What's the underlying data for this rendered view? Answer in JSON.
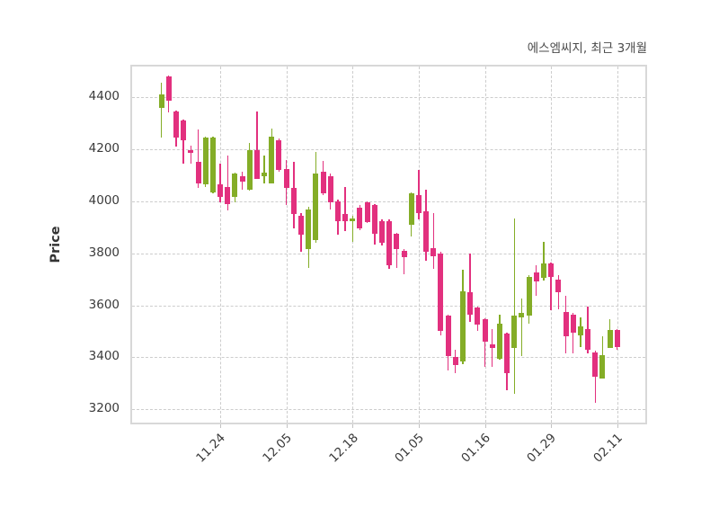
{
  "title": "에스엠씨지, 최근 3개월",
  "ylabel": "Price",
  "colors": {
    "up": "#84ad27",
    "down": "#e2307e",
    "grid": "#cdcdcd",
    "frame": "#d8d8d8",
    "tick_text": "#3a3a3a",
    "title_text": "#4a4a4a"
  },
  "chart_data": {
    "type": "candlestick",
    "title": "에스엠씨지, 최근 3개월",
    "ylabel": "Price",
    "xlabel": "",
    "grid": "dashed",
    "legend": "none",
    "ylim": [
      3149,
      4518
    ],
    "yticks": [
      3200,
      3400,
      3600,
      3800,
      4000,
      4200,
      4400
    ],
    "xtick_labels": [
      "11.24",
      "12.05",
      "12.18",
      "01.05",
      "01.16",
      "01.29",
      "02.11"
    ],
    "xtick_indices": [
      8,
      17,
      26,
      35,
      44,
      53,
      62
    ],
    "up_color": "#84ad27",
    "down_color": "#e2307e",
    "candle_format": [
      "open",
      "high",
      "low",
      "close"
    ],
    "candles": [
      [
        4360,
        4455,
        4245,
        4410
      ],
      [
        4480,
        4485,
        4340,
        4385
      ],
      [
        4345,
        4350,
        4210,
        4245
      ],
      [
        4310,
        4315,
        4145,
        4235
      ],
      [
        4195,
        4215,
        4145,
        4185
      ],
      [
        4150,
        4275,
        4050,
        4070
      ],
      [
        4065,
        4250,
        4055,
        4245
      ],
      [
        4035,
        4250,
        4030,
        4245
      ],
      [
        4065,
        4145,
        3995,
        4015
      ],
      [
        4055,
        4175,
        3965,
        3990
      ],
      [
        4015,
        4110,
        3995,
        4105
      ],
      [
        4095,
        4115,
        4045,
        4075
      ],
      [
        4045,
        4225,
        4040,
        4195
      ],
      [
        4195,
        4345,
        4085,
        4085
      ],
      [
        4095,
        4175,
        4070,
        4110
      ],
      [
        4070,
        4280,
        4070,
        4250
      ],
      [
        4235,
        4240,
        4115,
        4120
      ],
      [
        4125,
        4160,
        3985,
        4050
      ],
      [
        4050,
        4150,
        3895,
        3950
      ],
      [
        3945,
        3955,
        3805,
        3870
      ],
      [
        3815,
        3980,
        3745,
        3970
      ],
      [
        3850,
        4190,
        3840,
        4105
      ],
      [
        4115,
        4155,
        4025,
        4030
      ],
      [
        4095,
        4105,
        3970,
        3995
      ],
      [
        4000,
        4005,
        3870,
        3925
      ],
      [
        3950,
        4055,
        3885,
        3925
      ],
      [
        3925,
        3945,
        3845,
        3935
      ],
      [
        3975,
        3985,
        3890,
        3895
      ],
      [
        3995,
        4000,
        3915,
        3920
      ],
      [
        3985,
        3990,
        3835,
        3875
      ],
      [
        3925,
        3930,
        3830,
        3840
      ],
      [
        3925,
        3930,
        3740,
        3755
      ],
      [
        3875,
        3880,
        3745,
        3815
      ],
      [
        3810,
        3815,
        3720,
        3785
      ],
      [
        3910,
        4035,
        3865,
        4030
      ],
      [
        4025,
        4120,
        3930,
        3955
      ],
      [
        3960,
        4045,
        3770,
        3805
      ],
      [
        3820,
        3955,
        3740,
        3790
      ],
      [
        3800,
        3805,
        3485,
        3500
      ],
      [
        3560,
        3565,
        3350,
        3405
      ],
      [
        3400,
        3430,
        3340,
        3370
      ],
      [
        3385,
        3735,
        3375,
        3655
      ],
      [
        3650,
        3800,
        3535,
        3565
      ],
      [
        3590,
        3595,
        3500,
        3525
      ],
      [
        3545,
        3550,
        3365,
        3460
      ],
      [
        3450,
        3510,
        3365,
        3435
      ],
      [
        3395,
        3565,
        3390,
        3530
      ],
      [
        3490,
        3495,
        3275,
        3340
      ],
      [
        3435,
        3935,
        3260,
        3560
      ],
      [
        3555,
        3625,
        3405,
        3570
      ],
      [
        3560,
        3715,
        3530,
        3710
      ],
      [
        3725,
        3755,
        3635,
        3690
      ],
      [
        3705,
        3845,
        3695,
        3760
      ],
      [
        3760,
        3765,
        3580,
        3710
      ],
      [
        3700,
        3715,
        3585,
        3650
      ],
      [
        3575,
        3635,
        3415,
        3480
      ],
      [
        3565,
        3570,
        3415,
        3495
      ],
      [
        3485,
        3555,
        3440,
        3520
      ],
      [
        3510,
        3595,
        3415,
        3430
      ],
      [
        3420,
        3425,
        3225,
        3325
      ],
      [
        3320,
        3480,
        3320,
        3410
      ],
      [
        3435,
        3545,
        3435,
        3505
      ],
      [
        3505,
        3510,
        3430,
        3440
      ]
    ]
  }
}
